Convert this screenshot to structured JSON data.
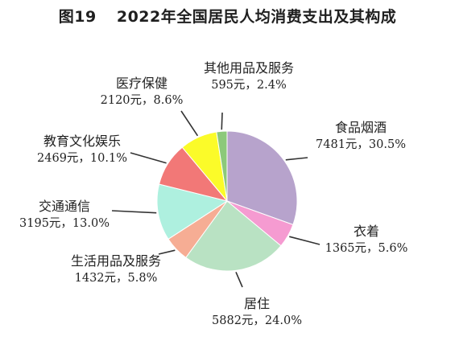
{
  "title": {
    "figure_number": "图19",
    "text": "2022年全国居民人均消费支出及其构成"
  },
  "chart_data": {
    "type": "pie",
    "title": "2022年全国居民人均消费支出及其构成",
    "unit": "元",
    "slices": [
      {
        "name": "食品烟酒",
        "value": 7481,
        "percent": 30.5,
        "value_label": "7481元，30.5%",
        "color": "#b7a3cc"
      },
      {
        "name": "衣着",
        "value": 1365,
        "percent": 5.6,
        "value_label": "1365元，5.6%",
        "color": "#f59bd1"
      },
      {
        "name": "居住",
        "value": 5882,
        "percent": 24.0,
        "value_label": "5882元，24.0%",
        "color": "#b9e2c3"
      },
      {
        "name": "生活用品及服务",
        "value": 1432,
        "percent": 5.8,
        "value_label": "1432元，5.8%",
        "color": "#f6ad94"
      },
      {
        "name": "交通通信",
        "value": 3195,
        "percent": 13.0,
        "value_label": "3195元，13.0%",
        "color": "#aef0df"
      },
      {
        "name": "教育文化娱乐",
        "value": 2469,
        "percent": 10.1,
        "value_label": "2469元，10.1%",
        "color": "#f27877"
      },
      {
        "name": "医疗保健",
        "value": 2120,
        "percent": 8.6,
        "value_label": "2120元，8.6%",
        "color": "#fbfb29"
      },
      {
        "name": "其他用品及服务",
        "value": 595,
        "percent": 2.4,
        "value_label": "595元，2.4%",
        "color": "#8cc97a"
      }
    ],
    "legend": "none"
  }
}
